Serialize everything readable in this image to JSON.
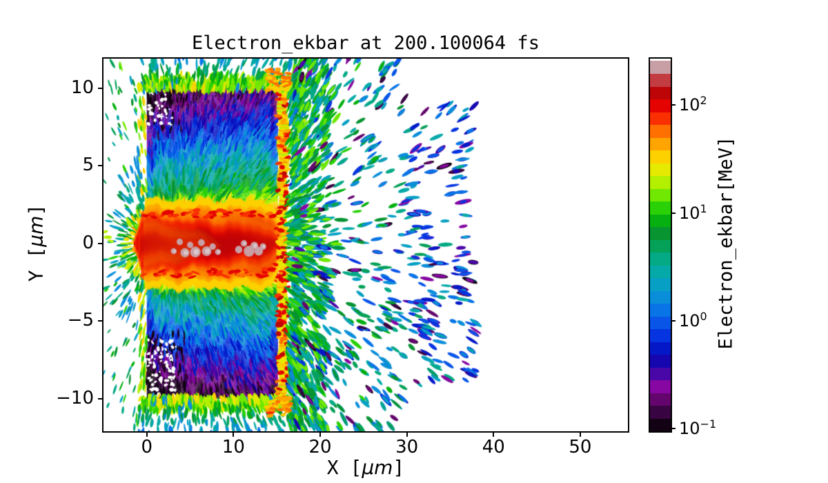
{
  "axes": {
    "xlabel_pre": "X [",
    "ylabel_pre": "Y [",
    "mu": "μm",
    "label_post": "]"
  },
  "chart_data": {
    "type": "heatmap",
    "title": "Electron_ekbar at 200.100064 fs",
    "xlabel": "X [μm]",
    "ylabel": "Y [μm]",
    "xlim": [
      -5.0,
      55.5
    ],
    "ylim": [
      -12.1,
      11.9
    ],
    "grid": false,
    "x_ticks": [
      0,
      10,
      20,
      30,
      40,
      50
    ],
    "x_tick_labels": [
      "0",
      "10",
      "20",
      "30",
      "40",
      "50"
    ],
    "y_ticks": [
      10,
      5,
      0,
      -5,
      -10
    ],
    "y_tick_labels": [
      "10",
      "5",
      "0",
      "−5",
      "−10"
    ],
    "colorbar": {
      "label": "Electron_ekbar[MeV]",
      "scale": "log",
      "vmin": 0.1,
      "vmax": 270,
      "tick_base": "10",
      "tick_exponents": [
        "2",
        "1",
        "0",
        "−1"
      ],
      "tick_exp_values": [
        2,
        1,
        0,
        -1
      ]
    },
    "colormap": [
      "#130214",
      "#380442",
      "#64056d",
      "#8607a2",
      "#4a07a8",
      "#1506b0",
      "#0418c8",
      "#0634e0",
      "#0855e8",
      "#0974e6",
      "#0a8eda",
      "#07a0c4",
      "#05aaa8",
      "#04aa86",
      "#05a158",
      "#079431",
      "#06b010",
      "#2ad106",
      "#70e801",
      "#b3ef00",
      "#e6e900",
      "#fdd000",
      "#ffa400",
      "#ff7000",
      "#fa3000",
      "#e40301",
      "#bd0407",
      "#c33c42",
      "#c79fa5"
    ],
    "scene": {
      "seed": 20100064,
      "target_slab": {
        "x": [
          0,
          15
        ],
        "y": [
          -10,
          10
        ],
        "log_profile_dy": [
          [
            0,
            2.12
          ],
          [
            1.9,
            2.05
          ],
          [
            2.35,
            1.68
          ],
          [
            2.75,
            1.32
          ],
          [
            3.2,
            0.98
          ],
          [
            3.7,
            0.7
          ],
          [
            5.3,
            0.34
          ],
          [
            7.1,
            -0.12
          ],
          [
            8.9,
            -0.58
          ],
          [
            10,
            -0.84
          ]
        ],
        "x_gradient": 0.3,
        "texture_streaks": 2600
      },
      "channel": {
        "y_center": 0,
        "half_width": 2.02,
        "x_start": -1.4,
        "x_tip": 15.3,
        "log_red": 2.0,
        "log_core": 2.12,
        "log_rim_orange": 1.75,
        "log_rim_yellow": 1.5
      },
      "hot_spots": {
        "color_log": 2.38,
        "blobs": [
          [
            3.1,
            -0.5,
            0.26
          ],
          [
            3.8,
            0.1,
            0.28
          ],
          [
            4.4,
            -0.6,
            0.4
          ],
          [
            5.0,
            -0.1,
            0.28
          ],
          [
            5.6,
            -0.55,
            0.46
          ],
          [
            6.3,
            0.05,
            0.3
          ],
          [
            6.9,
            -0.5,
            0.42
          ],
          [
            7.6,
            -0.2,
            0.28
          ],
          [
            8.2,
            -0.55,
            0.26
          ],
          [
            10.6,
            -0.4,
            0.32
          ],
          [
            11.2,
            0.0,
            0.28
          ],
          [
            11.8,
            -0.5,
            0.48
          ],
          [
            12.4,
            -0.15,
            0.34
          ],
          [
            12.9,
            -0.5,
            0.38
          ],
          [
            13.4,
            -0.2,
            0.28
          ]
        ]
      },
      "right_sheath": {
        "x": [
          15.05,
          16.4
        ],
        "log_range": [
          1.5,
          2.15
        ],
        "blobs": 150
      },
      "edge_fringe": {
        "band": 1.3,
        "log_range": [
          0.6,
          1.5
        ],
        "streaks": 520
      },
      "left_fan": {
        "rays": 260,
        "radius": 5.5,
        "log_near": 1.75,
        "log_far": 0.5
      },
      "debris": {
        "count": 640,
        "x_range": [
          16.5,
          38
        ],
        "log_range": [
          -0.85,
          1.2
        ],
        "near_count": 560
      },
      "corner_holes": {
        "bottom_left": 85,
        "top_left": 32,
        "dark_streaks": 110
      }
    }
  }
}
